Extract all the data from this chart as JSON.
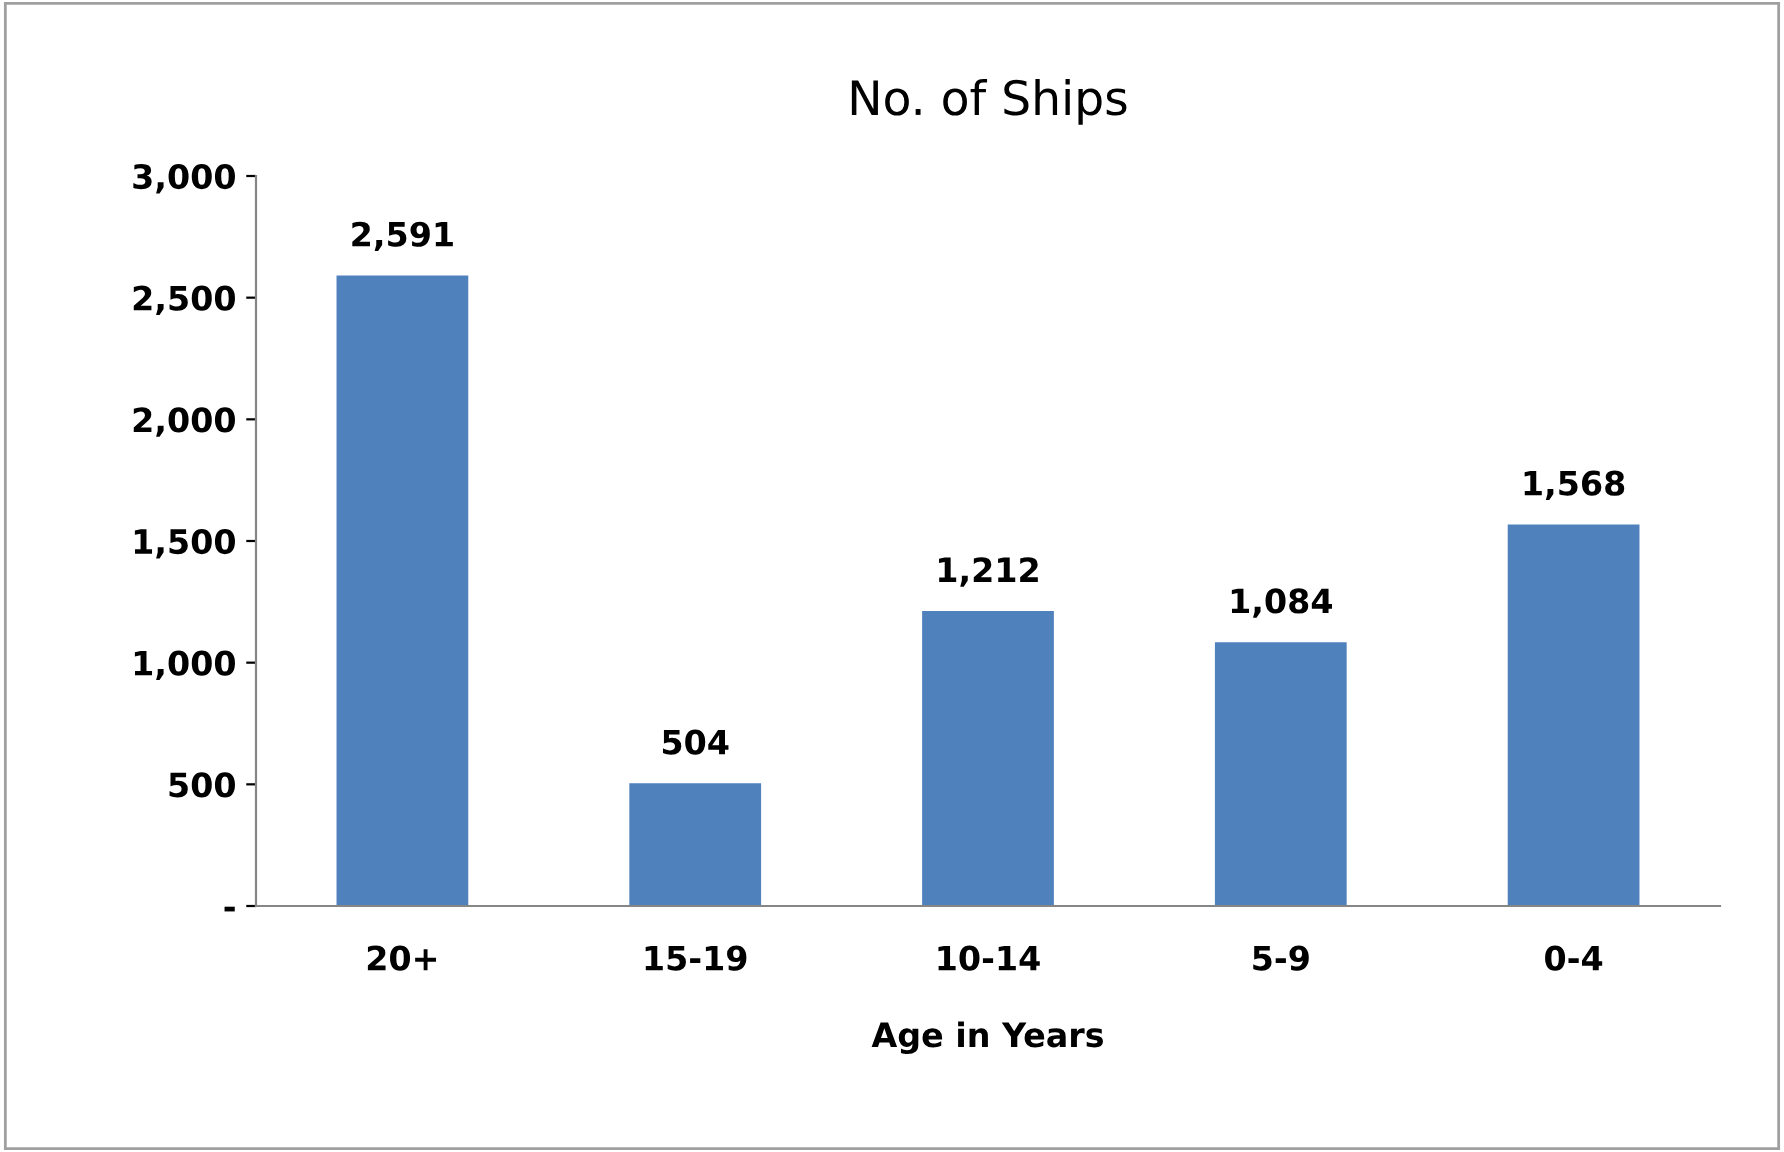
{
  "chart_data": {
    "type": "bar",
    "title": "No. of Ships",
    "xlabel": "Age in Years",
    "categories": [
      "20+",
      "15-19",
      "10-14",
      "5-9",
      "0-4"
    ],
    "values": [
      2591,
      504,
      1212,
      1084,
      1568
    ],
    "value_labels": [
      "2,591",
      "504",
      "1,212",
      "1,084",
      "1,568"
    ],
    "color": "#4f81bd",
    "ylim": [
      0,
      3000
    ],
    "yticks": [
      {
        "value": 0,
        "label": "-"
      },
      {
        "value": 500,
        "label": "500"
      },
      {
        "value": 1000,
        "label": "1,000"
      },
      {
        "value": 1500,
        "label": "1,500"
      },
      {
        "value": 2000,
        "label": "2,000"
      },
      {
        "value": 2500,
        "label": "2,500"
      },
      {
        "value": 3000,
        "label": "3,000"
      }
    ],
    "grid": false,
    "legend": false
  }
}
